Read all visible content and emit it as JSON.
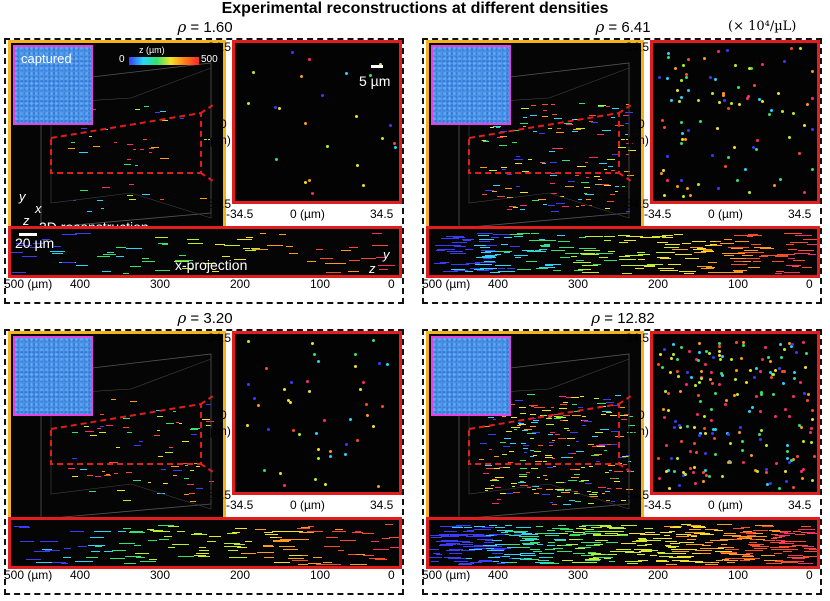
{
  "title": "Experimental reconstructions at different densities",
  "unit_note": "(× 10⁴/µL)",
  "rho_symbol": "ρ",
  "panels": [
    {
      "rho": "= 1.60",
      "density": 1.6,
      "dots": 24,
      "streaks": 70
    },
    {
      "rho": "= 6.41",
      "density": 6.41,
      "dots": 90,
      "streaks": 240
    },
    {
      "rho": "= 3.20",
      "density": 3.2,
      "dots": 45,
      "streaks": 130
    },
    {
      "rho": "= 12.82",
      "density": 12.82,
      "dots": 200,
      "streaks": 420
    }
  ],
  "labels": {
    "captured": "captured",
    "reconstruction": "3D reconstruction",
    "projection": "x-projection",
    "scale_xy": "5 µm",
    "scale_proj": "20 µm",
    "colorbar_title": "z (µm)",
    "colorbar_min": "0",
    "colorbar_max": "500",
    "axis_y": "y",
    "axis_x": "x",
    "axis_z": "z"
  },
  "ticks": {
    "xy_top": "34.5",
    "xy_mid": "0",
    "xy_unit": "(µm)",
    "xy_bottom": "-34.5",
    "xy_left": "-34.5",
    "xy_center": "0 (µm)",
    "xy_right": "34.5",
    "proj": [
      "500 (µm)",
      "400",
      "300",
      "200",
      "100",
      "0"
    ]
  },
  "colors": {
    "yellow_frame": "#f4b31a",
    "red_frame": "#e21d1d",
    "captured_frame": "#e542e4"
  }
}
